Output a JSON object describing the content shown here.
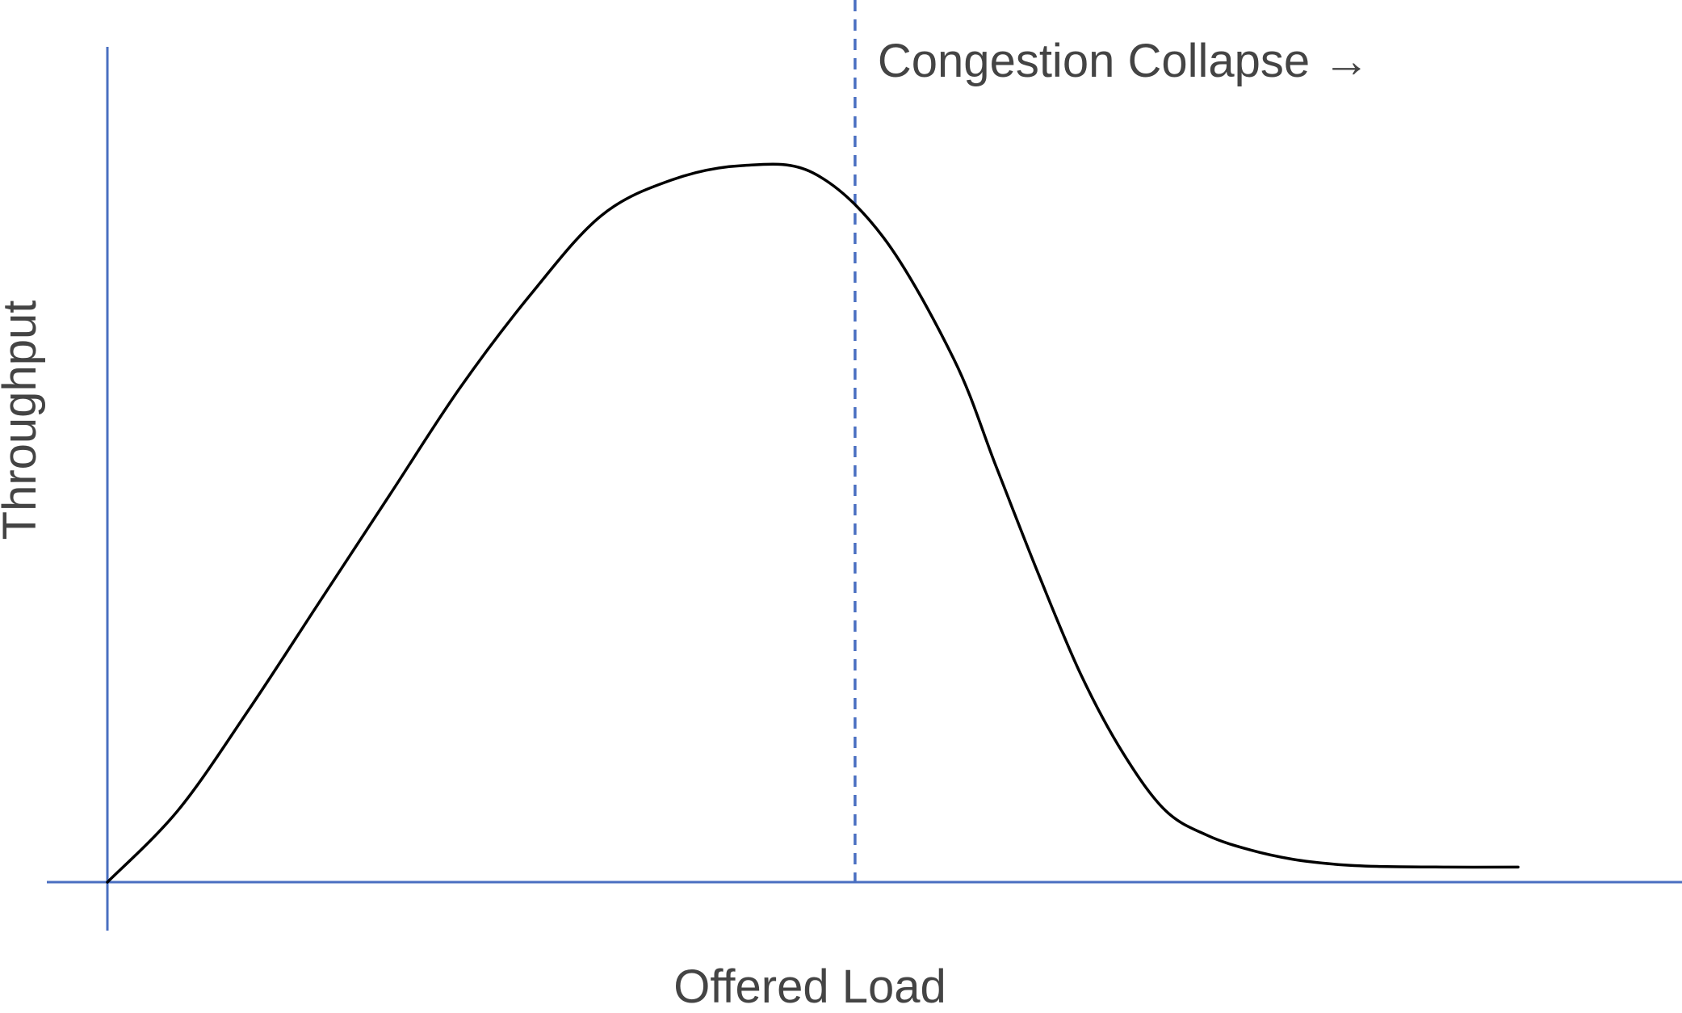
{
  "chart_data": {
    "type": "line",
    "title": "",
    "xlabel": "Offered Load",
    "ylabel": "Throughput",
    "xlim": [
      0,
      1
    ],
    "ylim": [
      0,
      1
    ],
    "grid": false,
    "legend": false,
    "series": [
      {
        "x": [
          0.0,
          0.05,
          0.1,
          0.15,
          0.2,
          0.25,
          0.3,
          0.35,
          0.4,
          0.45,
          0.5,
          0.55,
          0.6,
          0.63,
          0.66,
          0.69,
          0.72,
          0.75,
          0.78,
          0.81,
          0.84,
          0.87,
          0.9,
          0.95,
          1.0
        ],
        "y": [
          0.0,
          0.1,
          0.24,
          0.39,
          0.54,
          0.69,
          0.82,
          0.93,
          0.98,
          1.0,
          0.99,
          0.9,
          0.73,
          0.58,
          0.43,
          0.29,
          0.18,
          0.1,
          0.065,
          0.045,
          0.032,
          0.025,
          0.022,
          0.021,
          0.021
        ]
      }
    ],
    "annotations": [
      {
        "text": "Congestion Collapse →",
        "x": 0.53
      }
    ],
    "line_color": "#000000",
    "axis_color": "#4a6fc1",
    "text_color": "#444444"
  }
}
